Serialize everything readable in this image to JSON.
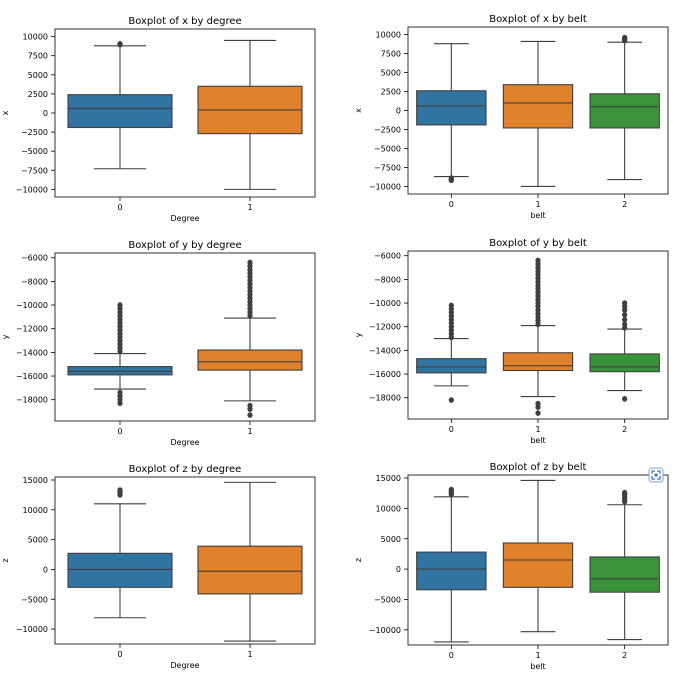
{
  "colors": {
    "blue": "#3274a1",
    "orange": "#e1812c",
    "green": "#3a923a",
    "line": "#3f3f3f",
    "axis": "#000000"
  },
  "chart_data": [
    {
      "type": "boxplot",
      "title": "Boxplot of x by degree",
      "xlabel": "Degree",
      "ylabel": "x",
      "ylim": [
        -11000,
        11000
      ],
      "yticks": [
        10000,
        7500,
        5000,
        2500,
        0,
        -2500,
        -5000,
        -7500,
        -10000
      ],
      "categories": [
        "0",
        "1"
      ],
      "boxes": [
        {
          "category": "0",
          "color": "blue",
          "q1": -1900,
          "median": 600,
          "q3": 2400,
          "whisker_low": -7300,
          "whisker_high": 8800,
          "outliers": [
            8950,
            9050
          ]
        },
        {
          "category": "1",
          "color": "orange",
          "q1": -2700,
          "median": 400,
          "q3": 3500,
          "whisker_low": -10000,
          "whisker_high": 9500,
          "outliers": []
        }
      ]
    },
    {
      "type": "boxplot",
      "title": "Boxplot of x by belt",
      "xlabel": "belt",
      "ylabel": "x",
      "ylim": [
        -11000,
        11000
      ],
      "yticks": [
        10000,
        7500,
        5000,
        2500,
        0,
        -2500,
        -5000,
        -7500,
        -10000
      ],
      "categories": [
        "0",
        "1",
        "2"
      ],
      "boxes": [
        {
          "category": "0",
          "color": "blue",
          "q1": -1900,
          "median": 600,
          "q3": 2600,
          "whisker_low": -8700,
          "whisker_high": 8800,
          "outliers": [
            -8900,
            -9100,
            -9200
          ]
        },
        {
          "category": "1",
          "color": "orange",
          "q1": -2300,
          "median": 1000,
          "q3": 3400,
          "whisker_low": -10000,
          "whisker_high": 9100,
          "outliers": []
        },
        {
          "category": "2",
          "color": "green",
          "q1": -2300,
          "median": 500,
          "q3": 2200,
          "whisker_low": -9100,
          "whisker_high": 9000,
          "outliers": [
            9200,
            9400,
            9500,
            9600
          ]
        }
      ]
    },
    {
      "type": "boxplot",
      "title": "Boxplot of y by degree",
      "xlabel": "Degree",
      "ylabel": "y",
      "ylim": [
        -19800,
        -5600
      ],
      "yticks": [
        -6000,
        -8000,
        -10000,
        -12000,
        -14000,
        -16000,
        -18000
      ],
      "categories": [
        "0",
        "1"
      ],
      "boxes": [
        {
          "category": "0",
          "color": "blue",
          "q1": -15900,
          "median": -15600,
          "q3": -15200,
          "whisker_low": -17100,
          "whisker_high": -14100,
          "outliers": [
            -10000,
            -10300,
            -10600,
            -10900,
            -11200,
            -11500,
            -11800,
            -12100,
            -12400,
            -12700,
            -13000,
            -13300,
            -13600,
            -13900,
            -17400,
            -17700,
            -18000,
            -18300
          ]
        },
        {
          "category": "1",
          "color": "orange",
          "q1": -15500,
          "median": -14800,
          "q3": -13800,
          "whisker_low": -18100,
          "whisker_high": -11100,
          "outliers": [
            -6400,
            -6700,
            -7000,
            -7300,
            -7600,
            -7900,
            -8200,
            -8500,
            -8800,
            -9100,
            -9400,
            -9700,
            -10000,
            -10300,
            -10600,
            -10900,
            -18500,
            -18800,
            -19300
          ]
        }
      ]
    },
    {
      "type": "boxplot",
      "title": "Boxplot of y by belt",
      "xlabel": "belt",
      "ylabel": "y",
      "ylim": [
        -19800,
        -5600
      ],
      "yticks": [
        -6000,
        -8000,
        -10000,
        -12000,
        -14000,
        -16000,
        -18000
      ],
      "categories": [
        "0",
        "1",
        "2"
      ],
      "boxes": [
        {
          "category": "0",
          "color": "blue",
          "q1": -15900,
          "median": -15400,
          "q3": -14700,
          "whisker_low": -17000,
          "whisker_high": -13000,
          "outliers": [
            -10200,
            -10500,
            -10800,
            -11100,
            -11400,
            -11700,
            -12000,
            -12300,
            -12600,
            -12900,
            -18200
          ]
        },
        {
          "category": "1",
          "color": "orange",
          "q1": -15700,
          "median": -15300,
          "q3": -14200,
          "whisker_low": -17900,
          "whisker_high": -11900,
          "outliers": [
            -6400,
            -6700,
            -7000,
            -7300,
            -7600,
            -7900,
            -8200,
            -8500,
            -8800,
            -9100,
            -9400,
            -9700,
            -10000,
            -10300,
            -10600,
            -10900,
            -11200,
            -11500,
            -11800,
            -18500,
            -18800,
            -19300
          ]
        },
        {
          "category": "2",
          "color": "green",
          "q1": -15800,
          "median": -15400,
          "q3": -14300,
          "whisker_low": -17400,
          "whisker_high": -12200,
          "outliers": [
            -10000,
            -10300,
            -10600,
            -11000,
            -11400,
            -11800,
            -12100,
            -18100
          ]
        }
      ]
    },
    {
      "type": "boxplot",
      "title": "Boxplot of z by degree",
      "xlabel": "Degree",
      "ylabel": "z",
      "ylim": [
        -12500,
        15500
      ],
      "yticks": [
        15000,
        10000,
        5000,
        0,
        -5000,
        -10000
      ],
      "categories": [
        "0",
        "1"
      ],
      "boxes": [
        {
          "category": "0",
          "color": "blue",
          "q1": -3000,
          "median": 0,
          "q3": 2700,
          "whisker_low": -8100,
          "whisker_high": 11000,
          "outliers": [
            12500,
            12800,
            13100,
            13300
          ]
        },
        {
          "category": "1",
          "color": "orange",
          "q1": -4100,
          "median": -300,
          "q3": 3900,
          "whisker_low": -12000,
          "whisker_high": 14600,
          "outliers": []
        }
      ]
    },
    {
      "type": "boxplot",
      "title": "Boxplot of z by belt",
      "xlabel": "belt",
      "ylabel": "z",
      "ylim": [
        -12500,
        15500
      ],
      "yticks": [
        15000,
        10000,
        5000,
        0,
        -5000,
        -10000
      ],
      "categories": [
        "0",
        "1",
        "2"
      ],
      "boxes": [
        {
          "category": "0",
          "color": "blue",
          "q1": -3400,
          "median": 0,
          "q3": 2800,
          "whisker_low": -12000,
          "whisker_high": 11900,
          "outliers": [
            12300,
            12600,
            12900,
            13100
          ]
        },
        {
          "category": "1",
          "color": "orange",
          "q1": -3000,
          "median": 1500,
          "q3": 4300,
          "whisker_low": -10300,
          "whisker_high": 14600,
          "outliers": []
        },
        {
          "category": "2",
          "color": "green",
          "q1": -3800,
          "median": -1600,
          "q3": 2000,
          "whisker_low": -11600,
          "whisker_high": 10600,
          "outliers": [
            11100,
            11500,
            11900,
            12300,
            12600
          ]
        }
      ]
    }
  ]
}
